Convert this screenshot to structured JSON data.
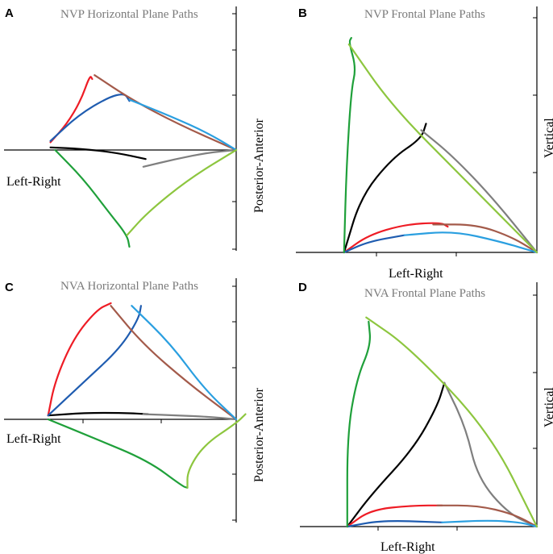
{
  "chart_data": [
    {
      "panel": "A",
      "type": "line",
      "title": "NVP Horizontal  Plane  Paths",
      "xlabel": "Left-Right",
      "ylabel": "Posterior-Anterior",
      "series": [
        {
          "name": "black",
          "color": "#000000",
          "x": [
            0.2,
            0.33,
            0.48,
            0.61
          ],
          "y": [
            0.02,
            0.01,
            -0.02,
            -0.07
          ]
        },
        {
          "name": "grey",
          "color": "#7f7f7f",
          "x": [
            0.6,
            0.74,
            0.88,
            1.0
          ],
          "y": [
            -0.13,
            -0.07,
            -0.02,
            0.0
          ]
        },
        {
          "name": "red",
          "color": "#ee1c25",
          "x": [
            0.2,
            0.27,
            0.33,
            0.37,
            0.38
          ],
          "y": [
            0.06,
            0.2,
            0.38,
            0.58,
            0.55
          ]
        },
        {
          "name": "darkblue",
          "color": "#1f5cb0",
          "x": [
            0.2,
            0.32,
            0.45,
            0.52,
            0.54
          ],
          "y": [
            0.07,
            0.27,
            0.41,
            0.44,
            0.38
          ]
        },
        {
          "name": "brown",
          "color": "#a35a4a",
          "x": [
            0.39,
            0.55,
            0.75,
            1.0
          ],
          "y": [
            0.58,
            0.39,
            0.2,
            0.0
          ]
        },
        {
          "name": "lightblue",
          "color": "#2a9fe0",
          "x": [
            0.54,
            0.72,
            0.88,
            1.0
          ],
          "y": [
            0.39,
            0.26,
            0.13,
            0.0
          ]
        },
        {
          "name": "green",
          "color": "#1fa03a",
          "x": [
            0.22,
            0.34,
            0.45,
            0.53,
            0.54
          ],
          "y": [
            0.0,
            -0.22,
            -0.48,
            -0.66,
            -0.75
          ]
        },
        {
          "name": "lightgreen",
          "color": "#8dc63f",
          "x": [
            0.53,
            0.62,
            0.8,
            1.0
          ],
          "y": [
            -0.66,
            -0.48,
            -0.22,
            0.0
          ]
        }
      ]
    },
    {
      "panel": "B",
      "type": "line",
      "title": "NVP Frontal Plane Paths",
      "xlabel": "Left-Right",
      "ylabel": "Vertical",
      "series": [
        {
          "name": "black",
          "color": "#000000",
          "x": [
            0.2,
            0.27,
            0.4,
            0.52,
            0.54
          ],
          "y": [
            0.0,
            0.26,
            0.44,
            0.53,
            0.6
          ]
        },
        {
          "name": "grey",
          "color": "#7f7f7f",
          "x": [
            0.52,
            0.65,
            0.82,
            1.0
          ],
          "y": [
            0.57,
            0.45,
            0.25,
            0.0
          ]
        },
        {
          "name": "red",
          "color": "#ee1c25",
          "x": [
            0.2,
            0.3,
            0.45,
            0.6,
            0.63
          ],
          "y": [
            0.0,
            0.08,
            0.13,
            0.14,
            0.12
          ]
        },
        {
          "name": "darkblue",
          "color": "#1f5cb0",
          "x": [
            0.2,
            0.3,
            0.45
          ],
          "y": [
            0.0,
            0.05,
            0.08
          ]
        },
        {
          "name": "brown",
          "color": "#a35a4a",
          "x": [
            0.57,
            0.75,
            0.9,
            1.0
          ],
          "y": [
            0.13,
            0.13,
            0.07,
            0.0
          ]
        },
        {
          "name": "lightblue",
          "color": "#2a9fe0",
          "x": [
            0.45,
            0.65,
            0.85,
            1.0
          ],
          "y": [
            0.08,
            0.1,
            0.05,
            0.0
          ]
        },
        {
          "name": "green",
          "color": "#1fa03a",
          "x": [
            0.2,
            0.21,
            0.23,
            0.25,
            0.22,
            0.23
          ],
          "y": [
            0.0,
            0.4,
            0.76,
            0.86,
            0.98,
            1.0
          ]
        },
        {
          "name": "lightgreen",
          "color": "#8dc63f",
          "x": [
            0.22,
            0.4,
            0.7,
            1.0
          ],
          "y": [
            0.97,
            0.68,
            0.34,
            0.0
          ]
        }
      ]
    },
    {
      "panel": "C",
      "type": "line",
      "title": "NVA Horizontal  Plane  Paths",
      "xlabel": "Left-Right",
      "ylabel": "Posterior-Anterior",
      "series": [
        {
          "name": "black",
          "color": "#000000",
          "x": [
            0.19,
            0.35,
            0.52,
            0.62
          ],
          "y": [
            0.03,
            0.05,
            0.05,
            0.04
          ]
        },
        {
          "name": "grey",
          "color": "#7f7f7f",
          "x": [
            0.6,
            0.75,
            0.88,
            1.0
          ],
          "y": [
            0.04,
            0.03,
            0.02,
            0.0
          ]
        },
        {
          "name": "red",
          "color": "#ee1c25",
          "x": [
            0.19,
            0.22,
            0.3,
            0.4,
            0.46
          ],
          "y": [
            0.03,
            0.3,
            0.63,
            0.85,
            0.9
          ]
        },
        {
          "name": "darkblue",
          "color": "#1f5cb0",
          "x": [
            0.19,
            0.35,
            0.5,
            0.58,
            0.59
          ],
          "y": [
            0.03,
            0.3,
            0.55,
            0.78,
            0.88
          ]
        },
        {
          "name": "brown",
          "color": "#a35a4a",
          "x": [
            0.46,
            0.6,
            0.8,
            1.0
          ],
          "y": [
            0.88,
            0.58,
            0.27,
            0.0
          ]
        },
        {
          "name": "lightblue",
          "color": "#2a9fe0",
          "x": [
            0.55,
            0.72,
            0.86,
            1.0
          ],
          "y": [
            0.88,
            0.58,
            0.24,
            0.0
          ]
        },
        {
          "name": "green",
          "color": "#1fa03a",
          "x": [
            0.19,
            0.38,
            0.62,
            0.77,
            0.79
          ],
          "y": [
            0.0,
            -0.14,
            -0.32,
            -0.52,
            -0.53
          ]
        },
        {
          "name": "lightgreen",
          "color": "#8dc63f",
          "x": [
            0.79,
            0.79,
            0.86,
            1.0,
            1.04
          ],
          "y": [
            -0.53,
            -0.4,
            -0.2,
            -0.03,
            0.04
          ]
        }
      ]
    },
    {
      "panel": "D",
      "type": "line",
      "title": "NVA Frontal Plane Paths",
      "xlabel": "Left-Right",
      "ylabel": "Vertical",
      "series": [
        {
          "name": "black",
          "color": "#000000",
          "x": [
            0.2,
            0.3,
            0.48,
            0.58,
            0.61
          ],
          "y": [
            0.0,
            0.15,
            0.37,
            0.57,
            0.68
          ]
        },
        {
          "name": "grey",
          "color": "#7f7f7f",
          "x": [
            0.61,
            0.7,
            0.75,
            0.88,
            1.0
          ],
          "y": [
            0.68,
            0.47,
            0.23,
            0.06,
            0.0
          ]
        },
        {
          "name": "red",
          "color": "#ee1c25",
          "x": [
            0.2,
            0.3,
            0.48,
            0.6
          ],
          "y": [
            0.0,
            0.08,
            0.1,
            0.1
          ]
        },
        {
          "name": "darkblue",
          "color": "#1f5cb0",
          "x": [
            0.2,
            0.35,
            0.6
          ],
          "y": [
            0.0,
            0.03,
            0.02
          ]
        },
        {
          "name": "brown",
          "color": "#a35a4a",
          "x": [
            0.58,
            0.75,
            0.9,
            1.0
          ],
          "y": [
            0.1,
            0.1,
            0.06,
            0.0
          ]
        },
        {
          "name": "lightblue",
          "color": "#2a9fe0",
          "x": [
            0.6,
            0.8,
            0.93,
            1.0
          ],
          "y": [
            0.02,
            0.03,
            0.02,
            0.0
          ]
        },
        {
          "name": "green",
          "color": "#1fa03a",
          "x": [
            0.2,
            0.2,
            0.24,
            0.3,
            0.29
          ],
          "y": [
            0.0,
            0.44,
            0.7,
            0.86,
            0.97
          ]
        },
        {
          "name": "lightgreen",
          "color": "#8dc63f",
          "x": [
            0.28,
            0.46,
            0.8,
            1.0
          ],
          "y": [
            0.99,
            0.85,
            0.45,
            0.0
          ]
        }
      ]
    }
  ]
}
